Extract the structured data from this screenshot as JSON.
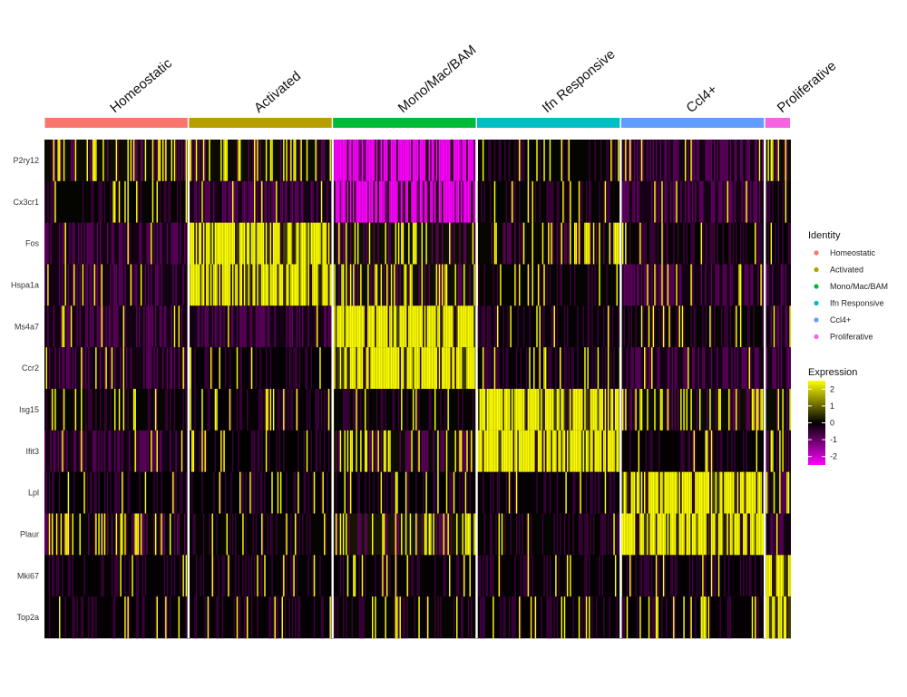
{
  "chart_data": {
    "type": "heatmap",
    "title": "",
    "xlabel": "",
    "ylabel": "",
    "clusters": [
      {
        "name": "Homeostatic",
        "color": "#F8766D",
        "share": 0.193
      },
      {
        "name": "Activated",
        "color": "#B79F00",
        "share": 0.193
      },
      {
        "name": "Mono/Mac/BAM",
        "color": "#00BA38",
        "share": 0.193
      },
      {
        "name": "Ifn Responsive",
        "color": "#00BFC4",
        "share": 0.193
      },
      {
        "name": "Ccl4+",
        "color": "#619CFF",
        "share": 0.193
      },
      {
        "name": "Proliferative",
        "color": "#F564E3",
        "share": 0.035
      }
    ],
    "genes": [
      "P2ry12",
      "Cx3cr1",
      "Fos",
      "Hspa1a",
      "Ms4a7",
      "Ccr2",
      "Isg15",
      "Ifit3",
      "Lpl",
      "Plaur",
      "Mki67",
      "Top2a"
    ],
    "mean_scaled_expression": [
      [
        0.3,
        0.3,
        -2.2,
        0.1,
        -0.5,
        0.3
      ],
      [
        0.1,
        -0.4,
        -1.6,
        0.1,
        -1.1,
        0.1
      ],
      [
        -0.3,
        1.6,
        0.4,
        0.2,
        0.1,
        -0.1
      ],
      [
        -0.5,
        1.5,
        0.4,
        0.1,
        -0.3,
        -0.4
      ],
      [
        -0.2,
        -0.2,
        1.7,
        -0.1,
        0.1,
        -0.5
      ],
      [
        -0.4,
        -0.1,
        1.6,
        -0.1,
        -0.5,
        -0.5
      ],
      [
        0.1,
        -0.1,
        0.1,
        1.9,
        0.3,
        0.3
      ],
      [
        -0.2,
        0.0,
        0.3,
        1.8,
        -0.1,
        0.2
      ],
      [
        0.0,
        0.0,
        0.0,
        -0.1,
        1.6,
        0.4
      ],
      [
        0.2,
        0.1,
        0.6,
        0.1,
        1.8,
        -0.3
      ],
      [
        -0.1,
        -0.1,
        -0.1,
        -0.1,
        -0.1,
        2.0
      ],
      [
        -0.1,
        -0.1,
        0.1,
        -0.1,
        -0.1,
        2.0
      ]
    ],
    "color_scale": {
      "low": "#FF00FF",
      "mid": "#000000",
      "high": "#FFFF00",
      "min": -2.5,
      "max": 2.5
    },
    "legend": {
      "identity_title": "Identity",
      "identity_items": [
        "Homeostatic",
        "Activated",
        "Mono/Mac/BAM",
        "Ifn Responsive",
        "Ccl4+",
        "Proliferative"
      ],
      "expression_title": "Expression",
      "expression_ticks": [
        2,
        1,
        0,
        -1,
        -2
      ]
    },
    "legend_position": "right"
  }
}
